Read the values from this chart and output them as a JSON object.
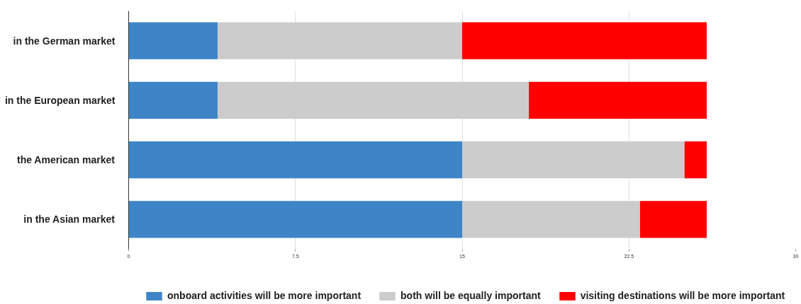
{
  "chart_data": {
    "type": "bar",
    "orientation": "horizontal",
    "stacked": true,
    "categories": [
      "in the German market",
      "in the European market",
      "the American market",
      "in the Asian market"
    ],
    "series": [
      {
        "name": "onboard activities will be more important",
        "color": "#3d85c6",
        "values": [
          4,
          4,
          15,
          15
        ]
      },
      {
        "name": "both will be equally important",
        "color": "#cccccc",
        "values": [
          11,
          14,
          10,
          8
        ]
      },
      {
        "name": "visiting destinations will be more important",
        "color": "#ff0000",
        "values": [
          11,
          8,
          1,
          3
        ]
      }
    ],
    "xlim": [
      0,
      30
    ],
    "xticks": [
      0,
      7.5,
      15,
      22.5,
      30
    ],
    "grid": "x",
    "legend": "bottom"
  }
}
